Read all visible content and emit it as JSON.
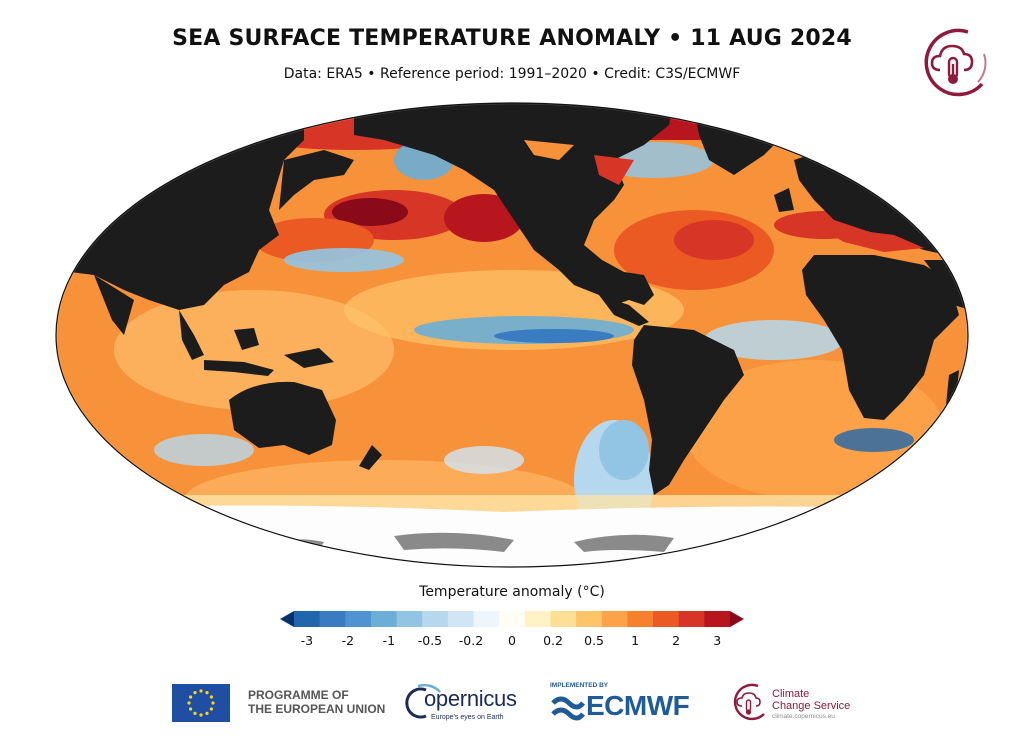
{
  "header": {
    "title": "SEA SURFACE TEMPERATURE ANOMALY • 11 AUG 2024",
    "subtitle": "Data: ERA5 • Reference period: 1991–2020 • Credit: C3S/ECMWF"
  },
  "map": {
    "projection": "Robinson-like world map, Pacific-centred",
    "land_color": "#1c1c1c",
    "sea_ice_color": "#fdfdfd",
    "ice_shelf_color": "#8a8a8a"
  },
  "legend": {
    "title": "Temperature anomaly (°C)",
    "bins": [
      "#08306b",
      "#2166ac",
      "#3a7cc2",
      "#4f93d2",
      "#6baed6",
      "#92c5e4",
      "#b5d8ee",
      "#d1e5f4",
      "#eef6fb",
      "#fefef5",
      "#fff2c7",
      "#fedf95",
      "#fdc46a",
      "#fca349",
      "#f6812c",
      "#ea5a22",
      "#d73526",
      "#b8161f",
      "#8b0a1a"
    ],
    "ticks": [
      "-3",
      "-2",
      "-1",
      "-0.5",
      "-0.2",
      "0",
      "0.2",
      "0.5",
      "1",
      "2",
      "3"
    ]
  },
  "logos": {
    "eu_line1": "PROGRAMME OF",
    "eu_line2": "THE EUROPEAN UNION",
    "copernicus_name": "opernicus",
    "copernicus_tagline": "Europe's eyes on Earth",
    "implemented_by": "IMPLEMENTED BY",
    "ecmwf_name": "ECMWF",
    "c3s_line1": "Climate",
    "c3s_line2": "Change Service",
    "c3s_url": "climate.copernicus.eu",
    "brand_colors": {
      "c3s": "#8e1b3b",
      "ecmwf": "#1f5b97",
      "copernicus": "#1b2a56",
      "eu": "#1f4ea3"
    }
  }
}
